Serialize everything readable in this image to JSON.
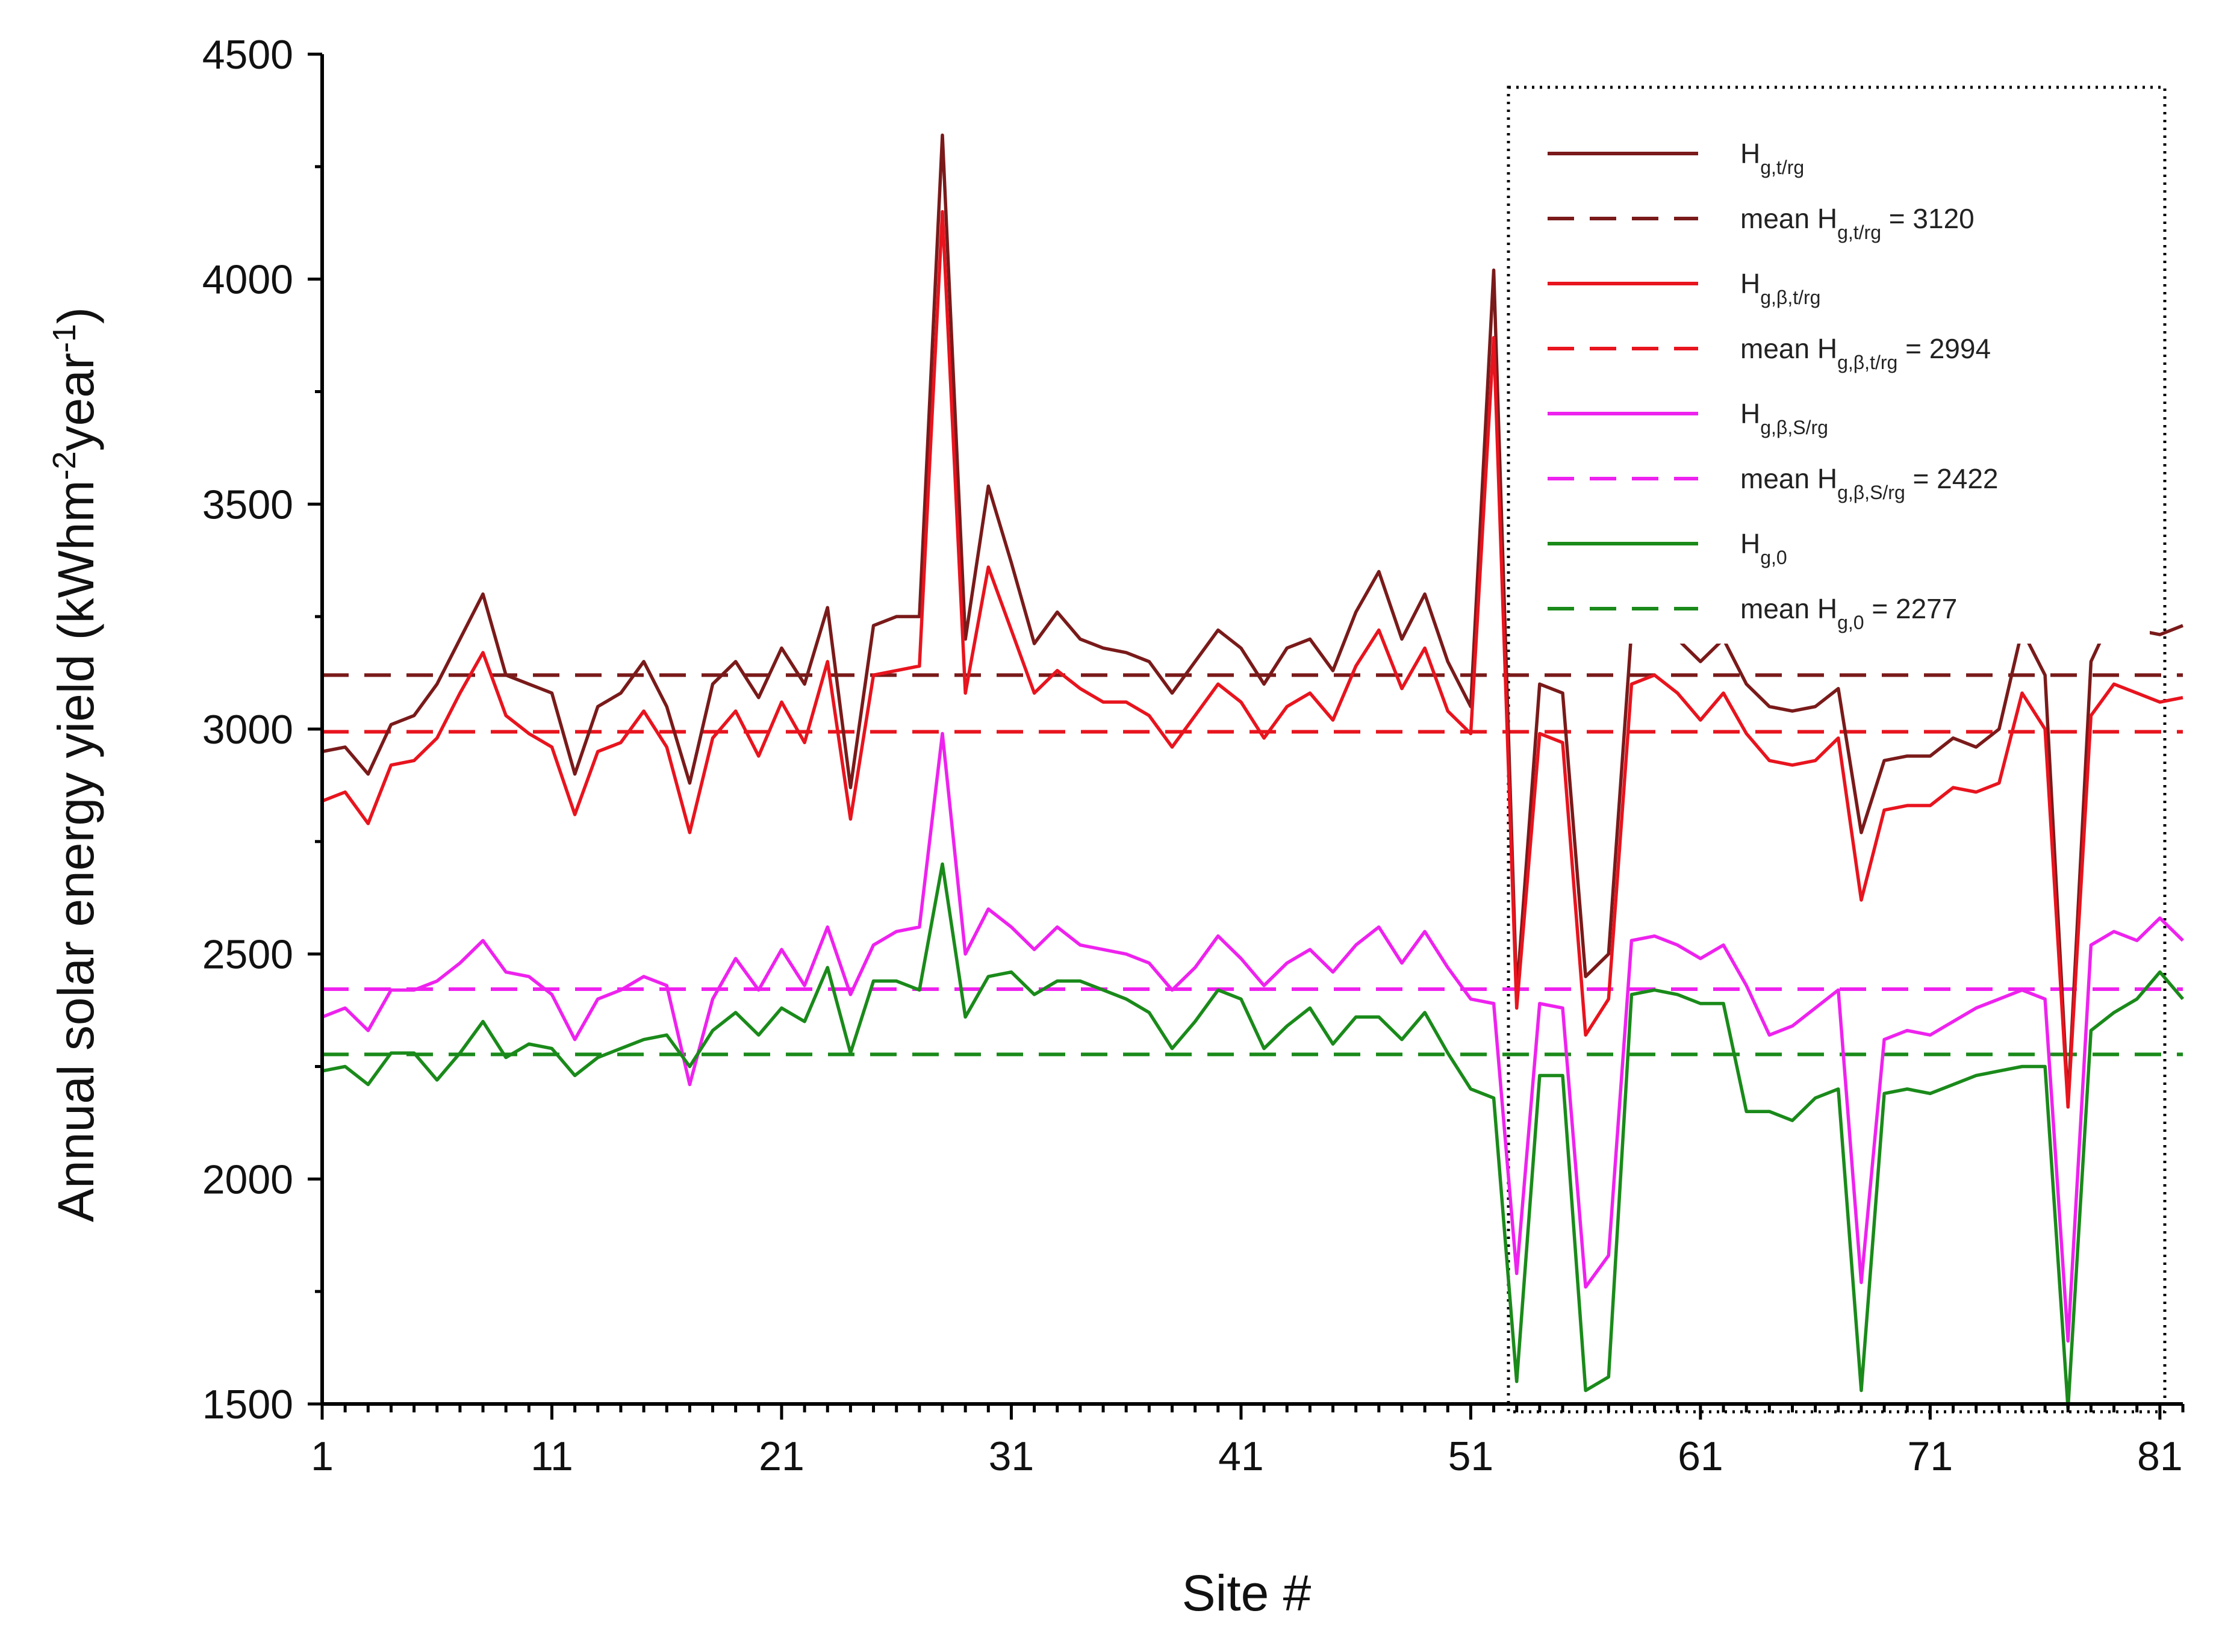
{
  "chart_data": {
    "type": "line",
    "xlabel": "Site #",
    "ylabel": "Annual solar energy yield (kWhm",
    "ylabel_unit_parts": [
      "-2",
      "year",
      "-1",
      ")"
    ],
    "xlim": [
      1,
      82
    ],
    "ylim": [
      1500,
      4500
    ],
    "x_ticks": [
      1,
      11,
      21,
      31,
      41,
      51,
      61,
      71,
      81
    ],
    "y_ticks": [
      1500,
      2000,
      2500,
      3000,
      3500,
      4000,
      4500
    ],
    "legend_position": "top-right",
    "x": [
      1,
      2,
      3,
      4,
      5,
      6,
      7,
      8,
      9,
      10,
      11,
      12,
      13,
      14,
      15,
      16,
      17,
      18,
      19,
      20,
      21,
      22,
      23,
      24,
      25,
      26,
      27,
      28,
      29,
      30,
      31,
      32,
      33,
      34,
      35,
      36,
      37,
      38,
      39,
      40,
      41,
      42,
      43,
      44,
      45,
      46,
      47,
      48,
      49,
      50,
      51,
      52,
      53,
      54,
      55,
      56,
      57,
      58,
      59,
      60,
      61,
      62,
      63,
      64,
      65,
      66,
      67,
      68,
      69,
      70,
      71,
      72,
      73,
      74,
      75,
      76,
      77,
      78,
      79,
      80,
      81,
      82
    ],
    "series": [
      {
        "name": "H_g,t/rg",
        "style": "solid",
        "color": "#7a1a1a",
        "values": [
          2950,
          2960,
          2900,
          3010,
          3030,
          3100,
          3200,
          3300,
          3120,
          3100,
          3080,
          2900,
          3050,
          3080,
          3150,
          3050,
          2880,
          3100,
          3150,
          3070,
          3180,
          3100,
          3270,
          2870,
          3230,
          3250,
          3250,
          4320,
          3200,
          3540,
          3370,
          3190,
          3260,
          3200,
          3180,
          3170,
          3150,
          3080,
          3150,
          3220,
          3180,
          3100,
          3180,
          3200,
          3130,
          3260,
          3350,
          3200,
          3300,
          3150,
          3050,
          4020,
          2410,
          3100,
          3080,
          2450,
          2500,
          3220,
          3240,
          3200,
          3150,
          3200,
          3100,
          3050,
          3040,
          3050,
          3090,
          2770,
          2930,
          2940,
          2940,
          2980,
          2960,
          3000,
          3220,
          3120,
          2170,
          3150,
          3260,
          3220,
          3210,
          3230
        ]
      },
      {
        "name": "mean H_g,t/rg = 3120",
        "style": "dashed",
        "color": "#7a1a1a",
        "mean": 3120
      },
      {
        "name": "H_g,β,t/rg",
        "style": "solid",
        "color": "#e8141e",
        "values": [
          2840,
          2860,
          2790,
          2920,
          2930,
          2980,
          3080,
          3170,
          3030,
          2990,
          2960,
          2810,
          2950,
          2970,
          3040,
          2960,
          2770,
          2980,
          3040,
          2940,
          3060,
          2970,
          3150,
          2800,
          3120,
          3130,
          3140,
          4150,
          3080,
          3360,
          3220,
          3080,
          3130,
          3090,
          3060,
          3060,
          3030,
          2960,
          3030,
          3100,
          3060,
          2980,
          3050,
          3080,
          3020,
          3140,
          3220,
          3090,
          3180,
          3040,
          2990,
          3870,
          2380,
          2990,
          2970,
          2320,
          2400,
          3100,
          3120,
          3080,
          3020,
          3080,
          2990,
          2930,
          2920,
          2930,
          2980,
          2620,
          2820,
          2830,
          2830,
          2870,
          2860,
          2880,
          3080,
          3000,
          2160,
          3030,
          3100,
          3080,
          3060,
          3070
        ]
      },
      {
        "name": "mean H_g,β,t/rg = 2994",
        "style": "dashed",
        "color": "#e8141e",
        "mean": 2994
      },
      {
        "name": "H_g,β,S/rg",
        "style": "solid",
        "color": "#ee22ee",
        "values": [
          2360,
          2380,
          2330,
          2420,
          2420,
          2440,
          2480,
          2530,
          2460,
          2450,
          2410,
          2310,
          2400,
          2420,
          2450,
          2430,
          2210,
          2400,
          2490,
          2420,
          2510,
          2430,
          2560,
          2410,
          2520,
          2550,
          2560,
          2990,
          2500,
          2600,
          2560,
          2510,
          2560,
          2520,
          2510,
          2500,
          2480,
          2420,
          2470,
          2540,
          2490,
          2430,
          2480,
          2510,
          2460,
          2520,
          2560,
          2480,
          2550,
          2470,
          2400,
          2390,
          1790,
          2390,
          2380,
          1760,
          1830,
          2530,
          2540,
          2520,
          2490,
          2520,
          2430,
          2320,
          2340,
          2380,
          2420,
          1770,
          2310,
          2330,
          2320,
          2350,
          2380,
          2400,
          2420,
          2400,
          1640,
          2520,
          2550,
          2530,
          2580,
          2530
        ]
      },
      {
        "name": "mean H_g,β,S/rg = 2422",
        "style": "dashed",
        "color": "#ee22ee",
        "mean": 2422
      },
      {
        "name": "H_g,0",
        "style": "solid",
        "color": "#1a8a1a",
        "values": [
          2240,
          2250,
          2210,
          2280,
          2280,
          2220,
          2280,
          2350,
          2270,
          2300,
          2290,
          2230,
          2270,
          2290,
          2310,
          2320,
          2250,
          2330,
          2370,
          2320,
          2380,
          2350,
          2470,
          2280,
          2440,
          2440,
          2420,
          2700,
          2360,
          2450,
          2460,
          2410,
          2440,
          2440,
          2420,
          2400,
          2370,
          2290,
          2350,
          2420,
          2400,
          2290,
          2340,
          2380,
          2300,
          2360,
          2360,
          2310,
          2370,
          2280,
          2200,
          2180,
          1550,
          2230,
          2230,
          1530,
          1560,
          2410,
          2420,
          2410,
          2390,
          2390,
          2150,
          2150,
          2130,
          2180,
          2200,
          1530,
          2190,
          2200,
          2190,
          2210,
          2230,
          2240,
          2250,
          2250,
          1490,
          2330,
          2370,
          2400,
          2460,
          2400
        ]
      },
      {
        "name": "mean H_g,0 = 2277",
        "style": "dashed",
        "color": "#1a8a1a",
        "mean": 2277
      }
    ],
    "legend": [
      {
        "kind": "solid",
        "color": "#7a1a1a",
        "prefix": "H",
        "sub": "g,t/rg"
      },
      {
        "kind": "dashed",
        "color": "#7a1a1a",
        "prefix": "mean H",
        "sub": "g,t/rg",
        "suffix": " = 3120"
      },
      {
        "kind": "solid",
        "color": "#e8141e",
        "prefix": "H",
        "sub": "g,β,t/rg"
      },
      {
        "kind": "dashed",
        "color": "#e8141e",
        "prefix": "mean H",
        "sub": "g,β,t/rg",
        "suffix": " = 2994"
      },
      {
        "kind": "solid",
        "color": "#ee22ee",
        "prefix": "H",
        "sub": "g,β,S/rg"
      },
      {
        "kind": "dashed",
        "color": "#ee22ee",
        "prefix": "mean H",
        "sub": "g,β,S/rg",
        "suffix": " = 2422"
      },
      {
        "kind": "solid",
        "color": "#1a8a1a",
        "prefix": "H",
        "sub": "g,0"
      },
      {
        "kind": "dashed",
        "color": "#1a8a1a",
        "prefix": "mean H",
        "sub": "g,0",
        "suffix": " = 2277"
      }
    ]
  }
}
